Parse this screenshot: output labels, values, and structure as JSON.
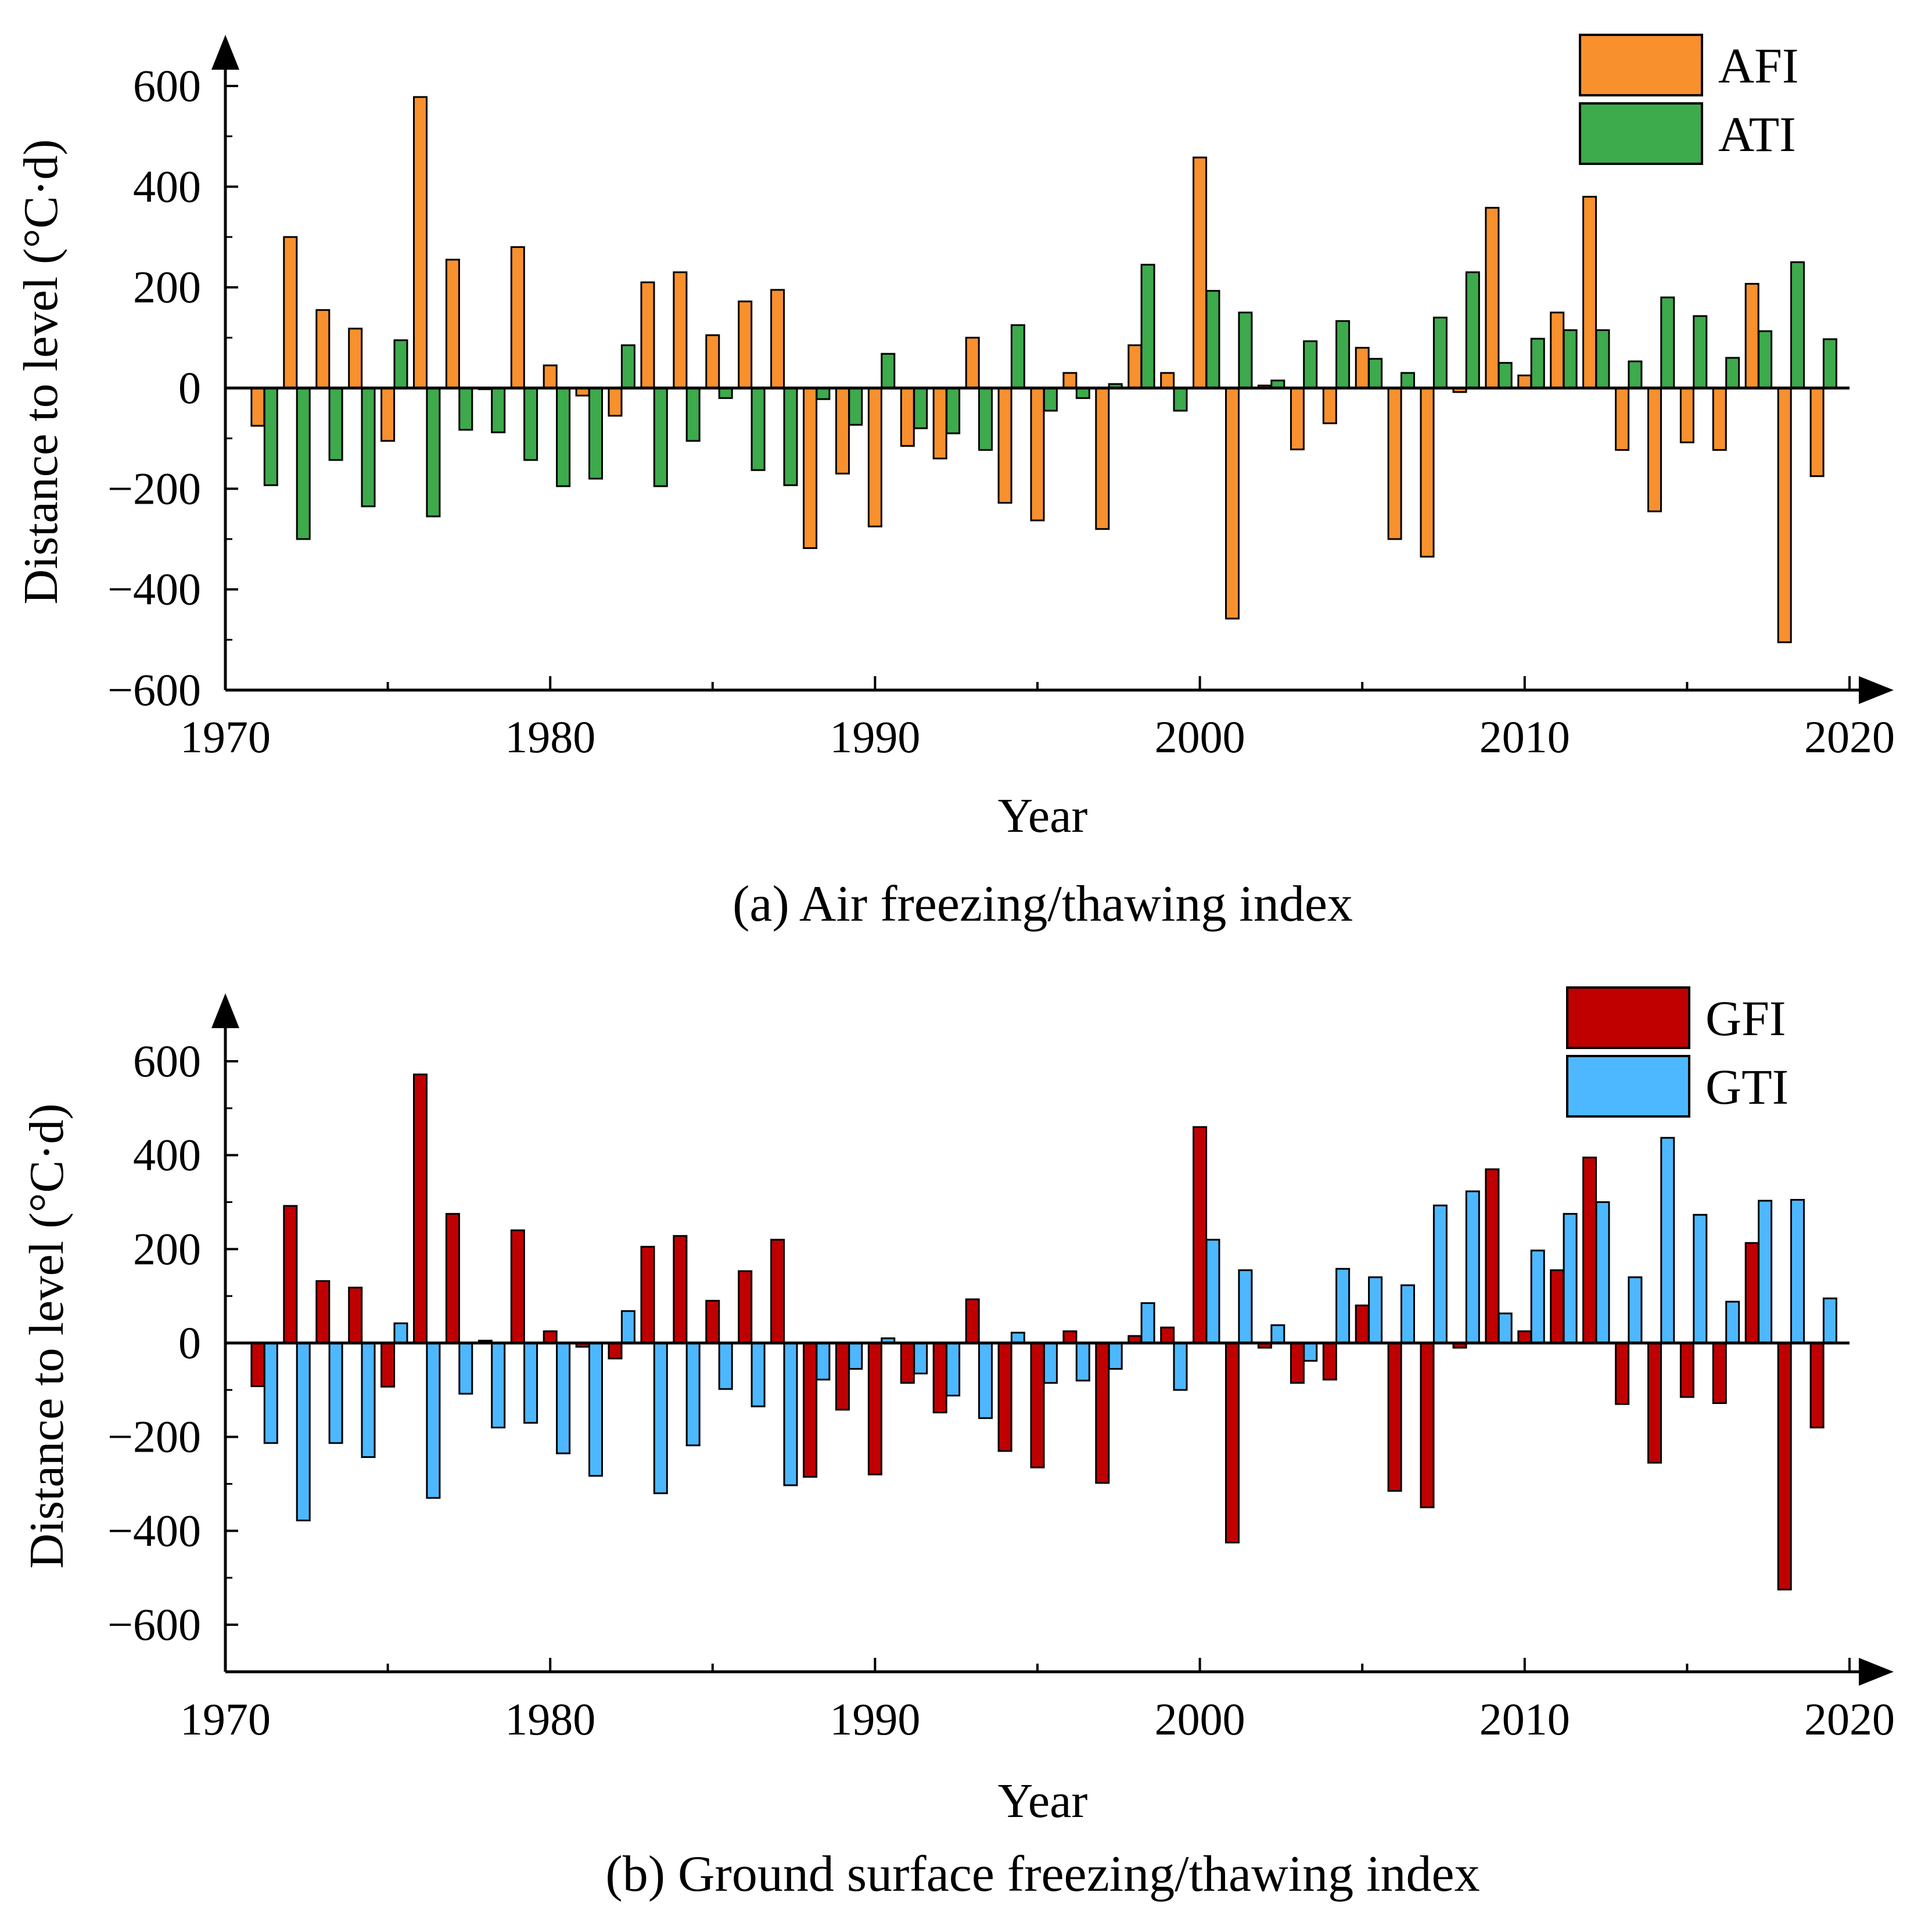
{
  "chart_data": [
    {
      "type": "bar",
      "caption": "(a) Air freezing/thawing index",
      "xlabel": "Year",
      "ylabel": "Distance to level (°C·d)",
      "xlim": [
        1970,
        2020
      ],
      "ylim": [
        -600,
        700
      ],
      "xticks": [
        "1970",
        "1980",
        "1990",
        "2000",
        "2010",
        "2020"
      ],
      "yticks": [
        "600",
        "400",
        "200",
        "0",
        "−200",
        "−400",
        "−600"
      ],
      "legend_position": "top-right",
      "series": [
        {
          "name": "AFI",
          "color": "#F8902E",
          "x": [
            1971,
            1972,
            1973,
            1974,
            1975,
            1976,
            1977,
            1978,
            1979,
            1980,
            1981,
            1982,
            1983,
            1984,
            1985,
            1986,
            1987,
            1988,
            1989,
            1990,
            1991,
            1992,
            1993,
            1994,
            1995,
            1996,
            1997,
            1998,
            1999,
            2000,
            2001,
            2002,
            2003,
            2004,
            2005,
            2006,
            2007,
            2008,
            2009,
            2010,
            2011,
            2012,
            2013,
            2014,
            2015,
            2016,
            2017,
            2018,
            2019
          ],
          "values": [
            -75,
            300,
            155,
            118,
            -105,
            578,
            255,
            0,
            280,
            45,
            -15,
            -55,
            210,
            230,
            105,
            172,
            195,
            -318,
            -170,
            -275,
            -115,
            -140,
            100,
            -228,
            -263,
            30,
            -280,
            85,
            30,
            458,
            -458,
            5,
            -122,
            -70,
            80,
            -300,
            -335,
            -8,
            358,
            25,
            150,
            380,
            -123,
            -245,
            -108,
            -123,
            207,
            -505,
            -175
          ]
        },
        {
          "name": "ATI",
          "color": "#3DAA4C",
          "x": [
            1971.4,
            1972.4,
            1973.4,
            1974.4,
            1975.4,
            1976.4,
            1977.4,
            1978.4,
            1979.4,
            1980.4,
            1981.4,
            1982.4,
            1983.4,
            1984.4,
            1985.4,
            1986.4,
            1987.4,
            1988.4,
            1989.4,
            1990.4,
            1991.4,
            1992.4,
            1993.4,
            1994.4,
            1995.4,
            1996.4,
            1997.4,
            1998.4,
            1999.4,
            2000.4,
            2001.4,
            2002.4,
            2003.4,
            2004.4,
            2005.4,
            2006.4,
            2007.4,
            2008.4,
            2009.4,
            2010.4,
            2011.4,
            2012.4,
            2013.4,
            2014.4,
            2015.4,
            2016.4,
            2017.4,
            2018.4,
            2019.4
          ],
          "values": [
            -193,
            -300,
            -143,
            -235,
            95,
            -255,
            -83,
            -88,
            -143,
            -195,
            -180,
            85,
            -195,
            -105,
            -20,
            -163,
            -193,
            -22,
            -73,
            68,
            -80,
            -90,
            -123,
            125,
            -45,
            -20,
            8,
            245,
            -45,
            193,
            150,
            15,
            93,
            133,
            58,
            30,
            140,
            230,
            50,
            98,
            115,
            115,
            53,
            180,
            143,
            60,
            113,
            250,
            97
          ]
        }
      ]
    },
    {
      "type": "bar",
      "caption": "(b) Ground surface freezing/thawing index",
      "xlabel": "Year",
      "ylabel": "Distance to level (°C·d)",
      "xlim": [
        1970,
        2020
      ],
      "ylim": [
        -700,
        700
      ],
      "xticks": [
        "1970",
        "1980",
        "1990",
        "2000",
        "2010",
        "2020"
      ],
      "yticks": [
        "600",
        "400",
        "200",
        "0",
        "−200",
        "−400",
        "−600"
      ],
      "legend_position": "top-right",
      "series": [
        {
          "name": "GFI",
          "color": "#C00000",
          "x": [
            1971,
            1972,
            1973,
            1974,
            1975,
            1976,
            1977,
            1978,
            1979,
            1980,
            1981,
            1982,
            1983,
            1984,
            1985,
            1986,
            1987,
            1988,
            1989,
            1990,
            1991,
            1992,
            1993,
            1994,
            1995,
            1996,
            1997,
            1998,
            1999,
            2000,
            2001,
            2002,
            2003,
            2004,
            2005,
            2006,
            2007,
            2008,
            2009,
            2010,
            2011,
            2012,
            2013,
            2014,
            2015,
            2016,
            2017,
            2018,
            2019
          ],
          "values": [
            -92,
            292,
            132,
            118,
            -93,
            572,
            275,
            5,
            240,
            25,
            -8,
            -33,
            205,
            228,
            90,
            153,
            220,
            -285,
            -142,
            -280,
            -85,
            -148,
            93,
            -230,
            -265,
            25,
            -298,
            15,
            33,
            460,
            -425,
            -10,
            -85,
            -78,
            80,
            -315,
            -350,
            -10,
            370,
            25,
            155,
            395,
            -130,
            -255,
            -115,
            -128,
            213,
            -525,
            -180
          ]
        },
        {
          "name": "GTI",
          "color": "#4DB8FF",
          "x": [
            1971.4,
            1972.4,
            1973.4,
            1974.4,
            1975.4,
            1976.4,
            1977.4,
            1978.4,
            1979.4,
            1980.4,
            1981.4,
            1982.4,
            1983.4,
            1984.4,
            1985.4,
            1986.4,
            1987.4,
            1988.4,
            1989.4,
            1990.4,
            1991.4,
            1992.4,
            1993.4,
            1994.4,
            1995.4,
            1996.4,
            1997.4,
            1998.4,
            1999.4,
            2000.4,
            2001.4,
            2002.4,
            2003.4,
            2004.4,
            2005.4,
            2006.4,
            2007.4,
            2008.4,
            2009.4,
            2010.4,
            2011.4,
            2012.4,
            2013.4,
            2014.4,
            2015.4,
            2016.4,
            2017.4,
            2018.4,
            2019.4
          ],
          "values": [
            -213,
            -378,
            -213,
            -243,
            42,
            -330,
            -108,
            -180,
            -170,
            -235,
            -283,
            68,
            -320,
            -218,
            -98,
            -135,
            -303,
            -78,
            -55,
            10,
            -65,
            -112,
            -160,
            22,
            -85,
            -80,
            -55,
            85,
            -100,
            220,
            155,
            38,
            -38,
            158,
            140,
            123,
            293,
            323,
            63,
            197,
            275,
            300,
            140,
            437,
            273,
            88,
            303,
            305,
            95
          ]
        }
      ]
    }
  ]
}
